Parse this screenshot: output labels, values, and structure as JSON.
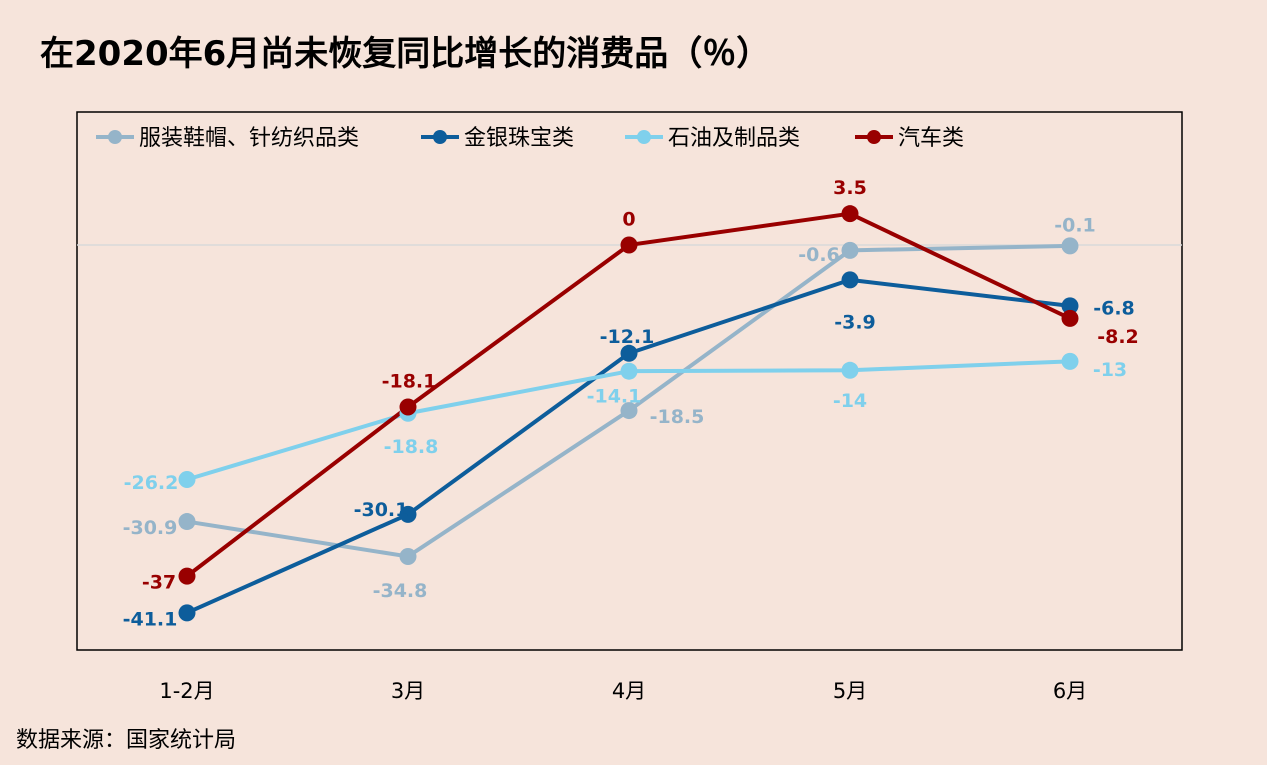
{
  "title": "在2020年6月尚未恢复同比增长的消费品（％）",
  "source": "数据来源：国家统计局",
  "chart_data": {
    "type": "line",
    "categories": [
      "1-2月",
      "3月",
      "4月",
      "5月",
      "6月"
    ],
    "ylim": [
      -45,
      5
    ],
    "grid": false,
    "zero_line": true,
    "legend_position": "top",
    "series": [
      {
        "name": "服装鞋帽、针纺织品类",
        "color": "#95b4c9",
        "values": [
          -30.9,
          -34.8,
          -18.5,
          -0.6,
          -0.1
        ],
        "labels": [
          "-30.9",
          "-34.8",
          "-18.5",
          "-0.6",
          "-0.1"
        ]
      },
      {
        "name": "金银珠宝类",
        "color": "#0d5d9b",
        "values": [
          -41.1,
          -30.1,
          -12.1,
          -3.9,
          -6.8
        ],
        "labels": [
          "-41.1",
          "-30.1",
          "-12.1",
          "-3.9",
          "-6.8"
        ]
      },
      {
        "name": "石油及制品类",
        "color": "#7fd0ec",
        "values": [
          -26.2,
          -18.8,
          -14.1,
          -14,
          -13
        ],
        "labels": [
          "-26.2",
          "-18.8",
          "-14.1",
          "-14",
          "-13"
        ]
      },
      {
        "name": "汽车类",
        "color": "#990000",
        "values": [
          -37,
          -18.1,
          0,
          3.5,
          -8.2
        ],
        "labels": [
          "-37",
          "-18.1",
          "0",
          "3.5",
          "-8.2"
        ]
      }
    ]
  }
}
